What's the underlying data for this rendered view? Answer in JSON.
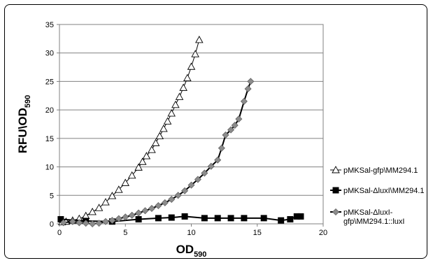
{
  "chart_data": {
    "type": "scatter",
    "xlabel": "OD",
    "xlabel_sub": "590",
    "ylabel": "RFU\\OD",
    "ylabel_sub": "590",
    "xlim": [
      0,
      20
    ],
    "ylim": [
      0,
      35
    ],
    "x_ticks": [
      "0",
      "5",
      "10",
      "15",
      "20"
    ],
    "y_ticks": [
      "0",
      "5",
      "10",
      "15",
      "20",
      "25",
      "30",
      "35"
    ],
    "grid": "horizontal",
    "legend_position": "right",
    "series": [
      {
        "name": "pMKSal-gfp\\MM294.1",
        "marker": "open-triangle",
        "color": "#000000",
        "x": [
          0.2,
          0.5,
          1.0,
          1.5,
          2.0,
          2.5,
          3.0,
          3.5,
          4.0,
          4.5,
          5.0,
          5.5,
          6.0,
          6.3,
          6.6,
          7.0,
          7.3,
          7.6,
          7.9,
          8.2,
          8.5,
          8.8,
          9.1,
          9.4,
          9.7,
          10.0,
          10.3,
          10.6
        ],
        "y": [
          0.3,
          0.4,
          0.6,
          0.9,
          1.4,
          2.1,
          2.8,
          3.8,
          4.9,
          6.0,
          7.2,
          8.5,
          9.9,
          10.9,
          11.9,
          13.0,
          14.2,
          15.4,
          16.7,
          18.0,
          19.4,
          20.9,
          22.3,
          23.9,
          25.6,
          27.6,
          29.8,
          32.3
        ]
      },
      {
        "name": "pMKSal-ΔluxI\\MM294.1",
        "marker": "filled-square",
        "color": "#000000",
        "x": [
          0.1,
          2.0,
          4.0,
          6.0,
          7.5,
          8.5,
          9.5,
          11.0,
          12.0,
          13.0,
          14.0,
          15.5,
          16.8,
          17.5,
          18.0,
          18.3
        ],
        "y": [
          0.8,
          0.5,
          0.4,
          0.8,
          1.0,
          1.1,
          1.3,
          1.0,
          1.0,
          1.0,
          1.0,
          1.0,
          0.6,
          0.8,
          1.3,
          1.3
        ]
      },
      {
        "name": "pMKSal-ΔluxI-gfp\\MM294.1::luxI",
        "marker": "grey-diamond",
        "color": "#7f7f7f",
        "x": [
          0.3,
          1.0,
          1.5,
          2.0,
          2.5,
          3.0,
          3.5,
          4.0,
          4.5,
          5.0,
          5.5,
          6.0,
          6.5,
          7.0,
          7.5,
          8.0,
          8.5,
          9.0,
          9.5,
          10.0,
          10.5,
          11.0,
          11.5,
          12.0,
          12.3,
          12.6,
          13.0,
          13.3,
          13.6,
          14.0,
          14.3,
          14.5
        ],
        "y": [
          0.2,
          0.4,
          0.2,
          0.1,
          0.0,
          0.1,
          0.4,
          0.6,
          0.9,
          1.2,
          1.5,
          1.9,
          2.3,
          2.7,
          3.2,
          3.7,
          4.3,
          5.0,
          5.8,
          6.8,
          7.8,
          8.9,
          10.1,
          11.2,
          13.3,
          15.6,
          16.5,
          17.3,
          18.4,
          21.5,
          23.7,
          25.0
        ]
      }
    ]
  }
}
